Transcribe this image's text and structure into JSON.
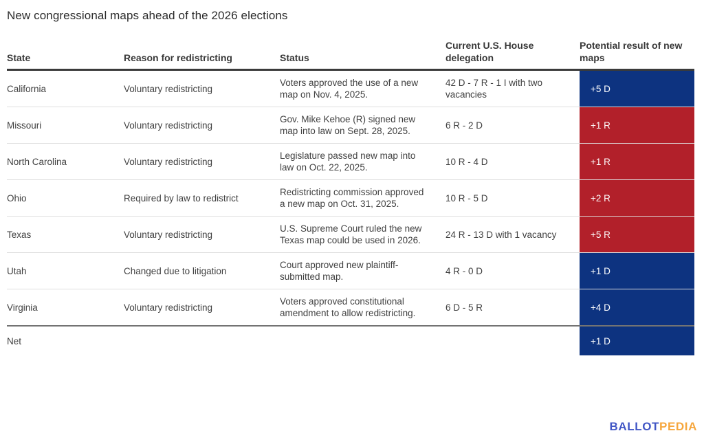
{
  "title": "New congressional maps ahead of the 2026 elections",
  "colors": {
    "democratic_blue": "#0d3380",
    "republican_red": "#b2202a",
    "logo_blue": "#4156c5",
    "logo_orange": "#f6a63c"
  },
  "table": {
    "columns": [
      {
        "label": "State"
      },
      {
        "label": "Reason for redistricting"
      },
      {
        "label": "Status"
      },
      {
        "label": "Current U.S. House delegation"
      },
      {
        "label": "Potential result of new maps"
      }
    ],
    "rows": [
      {
        "state": "California",
        "reason": "Voluntary redistricting",
        "status": "Voters approved the use of a new map on Nov. 4, 2025.",
        "delegation": "42 D - 7 R - 1 I with two vacancies",
        "result": "+5 D",
        "result_party": "D"
      },
      {
        "state": "Missouri",
        "reason": "Voluntary redistricting",
        "status": "Gov. Mike Kehoe (R) signed new map into law on Sept. 28, 2025.",
        "delegation": "6 R - 2 D",
        "result": "+1 R",
        "result_party": "R"
      },
      {
        "state": "North Carolina",
        "reason": "Voluntary redistricting",
        "status": "Legislature passed new map into law on Oct. 22, 2025.",
        "delegation": "10 R - 4 D",
        "result": "+1 R",
        "result_party": "R"
      },
      {
        "state": "Ohio",
        "reason": "Required by law to redistrict",
        "status": "Redistricting commission approved a new map on Oct. 31, 2025.",
        "delegation": "10 R - 5 D",
        "result": "+2 R",
        "result_party": "R"
      },
      {
        "state": "Texas",
        "reason": "Voluntary redistricting",
        "status": "U.S. Supreme Court ruled the new Texas map could be used in 2026.",
        "delegation": "24 R - 13 D with 1 vacancy",
        "result": "+5 R",
        "result_party": "R"
      },
      {
        "state": "Utah",
        "reason": "Changed due to litigation",
        "status": "Court approved new plaintiff-submitted map.",
        "delegation": "4 R - 0 D",
        "result": "+1 D",
        "result_party": "D"
      },
      {
        "state": "Virginia",
        "reason": "Voluntary redistricting",
        "status": "Voters approved constitutional amendment to allow redistricting.",
        "delegation": "6 D - 5 R",
        "result": "+4 D",
        "result_party": "D"
      }
    ],
    "net_row": {
      "label": "Net",
      "result": "+1 D",
      "result_party": "D"
    }
  },
  "footer": {
    "logo_part1": "BALLOT",
    "logo_part2": "PEDIA"
  },
  "chart_data": {
    "type": "table",
    "title": "New congressional maps ahead of the 2026 elections",
    "columns": [
      "State",
      "Reason for redistricting",
      "Status",
      "Current U.S. House delegation",
      "Potential result of new maps"
    ],
    "rows": [
      [
        "California",
        "Voluntary redistricting",
        "Voters approved the use of a new map on Nov. 4, 2025.",
        "42 D - 7 R - 1 I with two vacancies",
        "+5 D"
      ],
      [
        "Missouri",
        "Voluntary redistricting",
        "Gov. Mike Kehoe (R) signed new map into law on Sept. 28, 2025.",
        "6 R - 2 D",
        "+1 R"
      ],
      [
        "North Carolina",
        "Voluntary redistricting",
        "Legislature passed new map into law on Oct. 22, 2025.",
        "10 R - 4 D",
        "+1 R"
      ],
      [
        "Ohio",
        "Required by law to redistrict",
        "Redistricting commission approved a new map on Oct. 31, 2025.",
        "10 R - 5 D",
        "+2 R"
      ],
      [
        "Texas",
        "Voluntary redistricting",
        "U.S. Supreme Court ruled the new Texas map could be used in 2026.",
        "24 R - 13 D with 1 vacancy",
        "+5 R"
      ],
      [
        "Utah",
        "Changed due to litigation",
        "Court approved new plaintiff-submitted map.",
        "4 R - 0 D",
        "+1 D"
      ],
      [
        "Virginia",
        "Voluntary redistricting",
        "Voters approved constitutional amendment to allow redistricting.",
        "6 D - 5 R",
        "+4 D"
      ],
      [
        "Net",
        "",
        "",
        "",
        "+1 D"
      ]
    ],
    "result_color_coding": {
      "D": "#0d3380",
      "R": "#b2202a"
    },
    "source_branding": "BALLOTPEDIA"
  }
}
